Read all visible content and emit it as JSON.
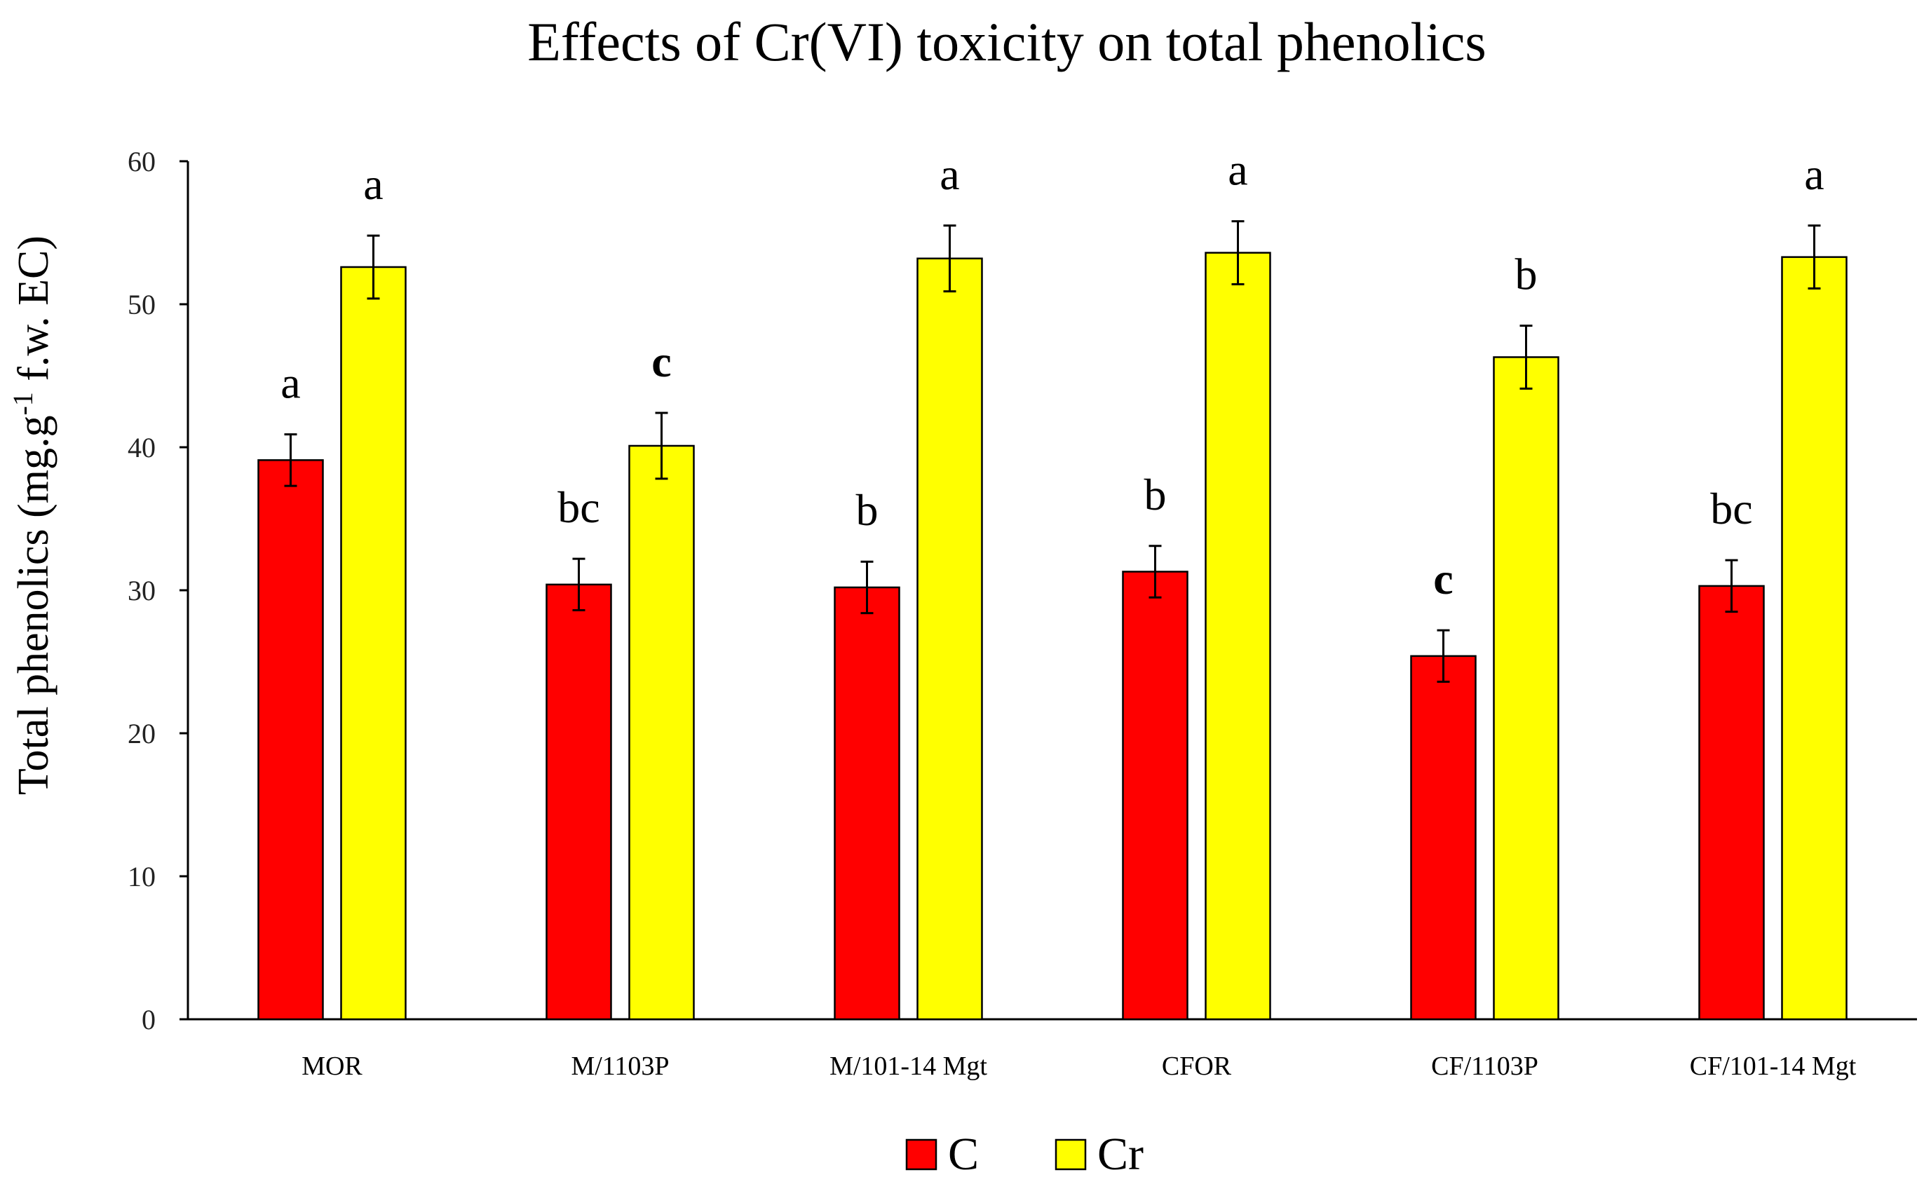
{
  "chart_data": {
    "type": "bar",
    "title": "Effects of Cr(VI) toxicity on total phenolics",
    "ylabel": "Total phenolics (mg.g",
    "ylabel_superscript": "-1",
    "ylabel_suffix": " f.w. EC)",
    "xlabel": "",
    "ylim": [
      0,
      60
    ],
    "yticks": [
      0,
      10,
      20,
      30,
      40,
      50,
      60
    ],
    "grid": false,
    "legend_position": "bottom-center",
    "categories": [
      "MOR",
      "M/1103P",
      "M/101-14 Mgt",
      "CFOR",
      "CF/1103P",
      "CF/101-14 Mgt"
    ],
    "series": [
      {
        "name": "C",
        "color": "#ff0000",
        "values": [
          39.1,
          30.4,
          30.2,
          31.3,
          25.4,
          30.3
        ],
        "errors": [
          1.8,
          1.8,
          1.8,
          1.8,
          1.8,
          1.8
        ],
        "letters": [
          "a",
          "bc",
          "b",
          "b",
          "c",
          "bc"
        ],
        "letters_bold": [
          false,
          false,
          false,
          false,
          true,
          false
        ]
      },
      {
        "name": "Cr",
        "color": "#ffff00",
        "values": [
          52.6,
          40.1,
          53.2,
          53.6,
          46.3,
          53.3
        ],
        "errors": [
          2.2,
          2.3,
          2.3,
          2.2,
          2.2,
          2.2
        ],
        "letters": [
          "a",
          "c",
          "a",
          "a",
          "b",
          "a"
        ],
        "letters_bold": [
          false,
          true,
          false,
          false,
          false,
          false
        ]
      }
    ]
  }
}
